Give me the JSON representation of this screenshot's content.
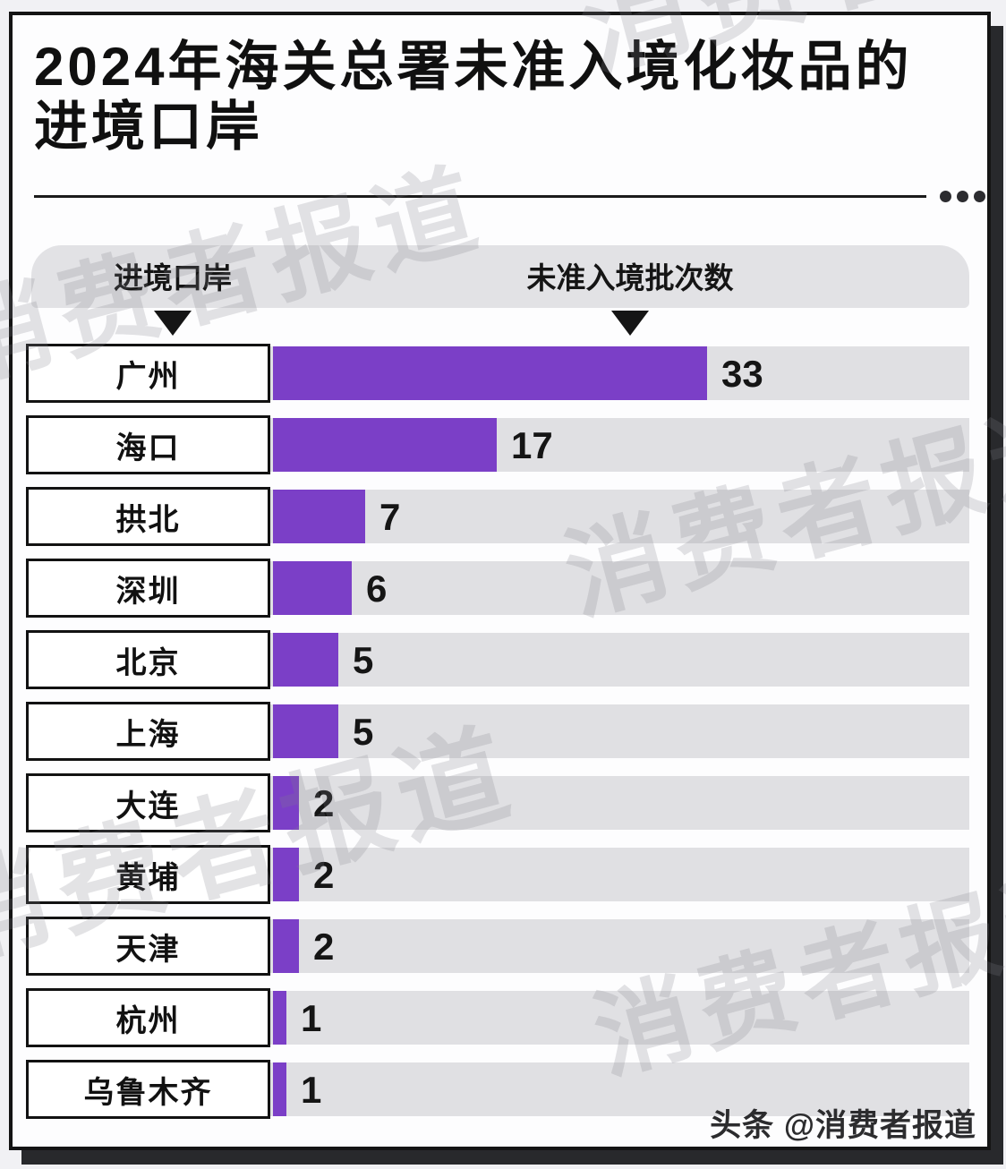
{
  "header": {
    "title_line1": "2024年海关总署未准入境化妆品的",
    "title_line2": "进境口岸"
  },
  "table": {
    "col1_header": "进境口岸",
    "col2_header": "未准入境批次数"
  },
  "chart_data": {
    "type": "bar",
    "orientation": "horizontal",
    "title": "2024年海关总署未准入境化妆品的进境口岸",
    "categories": [
      "广州",
      "海口",
      "拱北",
      "深圳",
      "北京",
      "上海",
      "大连",
      "黄埔",
      "天津",
      "杭州",
      "乌鲁木齐"
    ],
    "values": [
      33,
      17,
      7,
      6,
      5,
      5,
      2,
      2,
      2,
      1,
      1
    ],
    "value_axis_label": "未准入境批次数",
    "category_axis_label": "进境口岸",
    "xlim": [
      0,
      33
    ],
    "grid": false,
    "legend": "none",
    "bar_color": "#7B3FC7",
    "track_color": "#E0E0E3"
  },
  "footer": {
    "credit": "头条 @消费者报道"
  },
  "watermark": {
    "text": "消费者报道"
  },
  "colors": {
    "bar": "#7B3FC7",
    "track": "#E0E0E3",
    "card_border": "#141414",
    "shadow": "#28292C",
    "page_bg": "#F1F1F4"
  }
}
